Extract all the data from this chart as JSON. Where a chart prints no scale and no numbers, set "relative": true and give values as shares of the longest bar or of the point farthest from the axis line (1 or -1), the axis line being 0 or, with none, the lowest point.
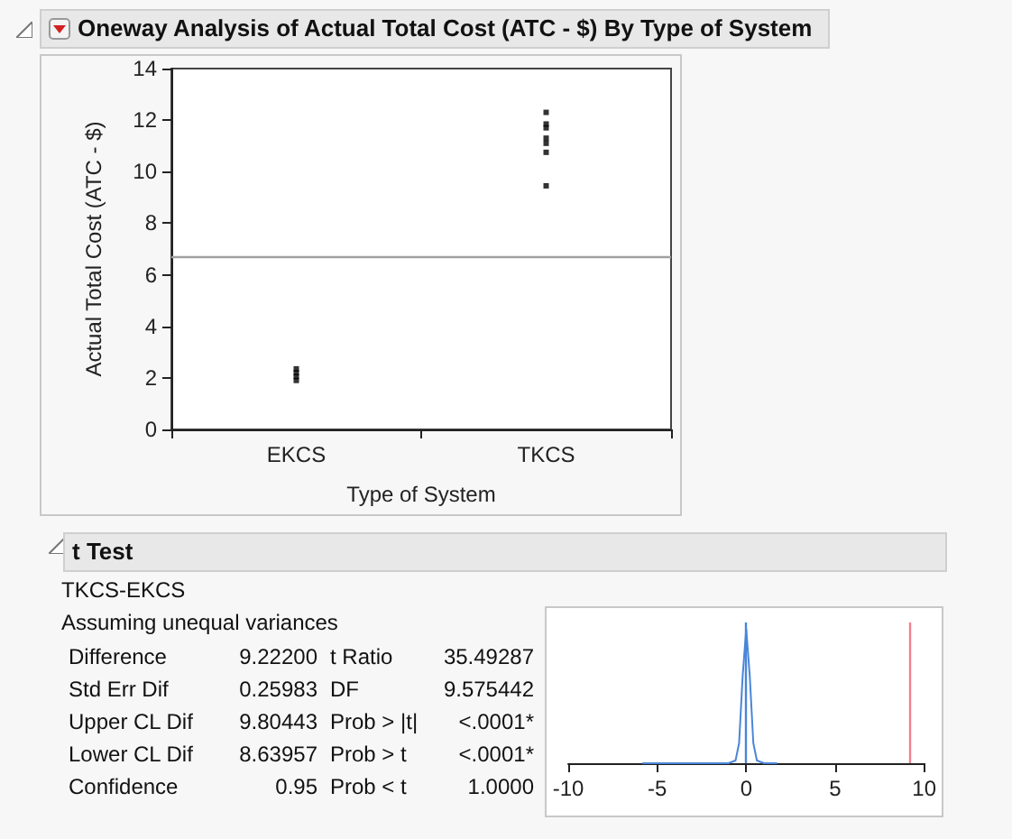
{
  "chart_data": [
    {
      "type": "scatter",
      "title": "Oneway Analysis of Actual Total Cost (ATC - $) By Type of System",
      "xlabel": "Type of System",
      "ylabel": "Actual Total Cost (ATC - $)",
      "categories": [
        "EKCS",
        "TKCS"
      ],
      "series": [
        {
          "color": "#000000",
          "x": [
            "EKCS",
            "EKCS",
            "EKCS",
            "EKCS",
            "TKCS",
            "TKCS",
            "TKCS",
            "TKCS",
            "TKCS",
            "TKCS",
            "TKCS"
          ],
          "values": [
            2.35,
            2.2,
            2.05,
            1.9,
            12.3,
            11.85,
            11.7,
            11.3,
            11.1,
            10.75,
            9.45
          ]
        }
      ],
      "ylim": [
        0,
        14
      ],
      "yticks": [
        0,
        2,
        4,
        6,
        8,
        10,
        12,
        14
      ],
      "grid": false,
      "marker": "square",
      "ref_lines": [
        {
          "axis": "y",
          "value": 6.67,
          "color": "#a0a0a0"
        }
      ]
    },
    {
      "type": "other",
      "title": "t Test",
      "subtitle": "TKCS-EKCS",
      "annotations": [
        "Assuming unequal variances",
        "Difference",
        "9.22200",
        "t Ratio",
        "35.49287",
        "Std Err Dif",
        "0.25983",
        "DF",
        "9.575442",
        "Upper CL Dif",
        "9.80443",
        "Prob > |t|",
        "<.0001*",
        "Lower CL Dif",
        "8.63957",
        "Prob > t",
        "<.0001*",
        "Confidence",
        "0.95",
        "Prob < t",
        "1.0000"
      ]
    },
    {
      "type": "line",
      "relative": true,
      "tick_labels": "x",
      "grid": false,
      "marker": "none",
      "line_style": "solid",
      "series": [
        {
          "color": "#4a86d8",
          "x": [
            -5.8,
            -2,
            -1,
            -0.6,
            -0.4,
            -0.2,
            0,
            0.2,
            0.4,
            0.6,
            1,
            1.7
          ],
          "values": [
            0,
            0,
            0,
            0.02,
            0.15,
            0.65,
            1,
            0.65,
            0.15,
            0.02,
            0,
            0
          ]
        }
      ],
      "xlim": [
        -10,
        10
      ],
      "xticks": [
        -10,
        -5,
        0,
        5,
        10
      ],
      "ref_lines": [
        {
          "axis": "x",
          "value": 0,
          "color": "#4a86d8"
        },
        {
          "axis": "x",
          "value": 9.222,
          "color": "#f08090"
        }
      ]
    }
  ]
}
